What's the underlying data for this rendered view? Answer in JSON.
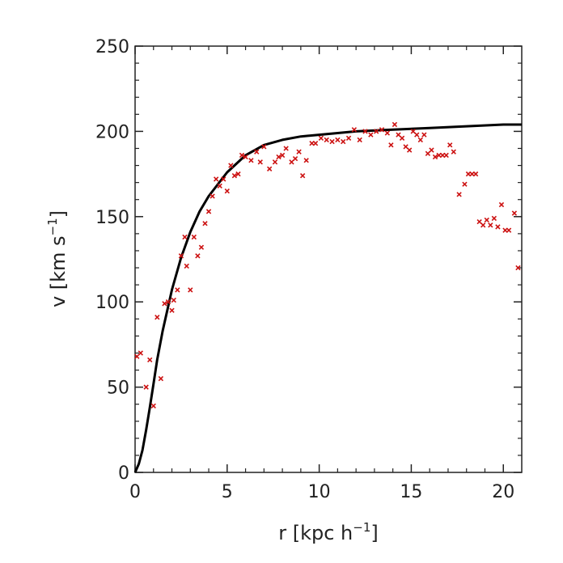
{
  "chart_data": {
    "type": "scatter",
    "xlabel": "r [kpc h",
    "xlabel_sup": "−1",
    "xlabel_tail": "]",
    "ylabel": "v [km s",
    "ylabel_sup": "−1",
    "ylabel_tail": "]",
    "xlim": [
      0,
      21
    ],
    "ylim": [
      0,
      250
    ],
    "xticks": [
      0,
      5,
      10,
      15,
      20
    ],
    "yticks": [
      0,
      50,
      100,
      150,
      200,
      250
    ],
    "xtick_labels": [
      "0",
      "5",
      "10",
      "15",
      "20"
    ],
    "ytick_labels": [
      "0",
      "50",
      "100",
      "150",
      "200",
      "250"
    ],
    "grid": false,
    "colors": {
      "model": "#000000",
      "data": "#cc1111",
      "frame": "#222222"
    },
    "series": [
      {
        "kind": "line",
        "x": [
          0,
          0.2,
          0.4,
          0.6,
          0.8,
          1.0,
          1.2,
          1.5,
          2.0,
          2.5,
          3.0,
          3.5,
          4.0,
          5.0,
          6.0,
          7.0,
          8.0,
          9.0,
          10.0,
          12.0,
          14.0,
          16.0,
          18.0,
          20.0,
          21.0
        ],
        "y": [
          0,
          5,
          13,
          25,
          38,
          52,
          66,
          83,
          107,
          126,
          141,
          153,
          162,
          176,
          186,
          192,
          195,
          197,
          198,
          200,
          201,
          202,
          203,
          204,
          204
        ]
      },
      {
        "kind": "scatter",
        "marker": "x",
        "x": [
          0.1,
          0.3,
          0.6,
          0.8,
          1.0,
          1.2,
          1.4,
          1.6,
          1.8,
          2.0,
          2.1,
          2.3,
          2.5,
          2.7,
          2.8,
          3.0,
          3.2,
          3.4,
          3.6,
          3.8,
          4.0,
          4.2,
          4.4,
          4.6,
          4.8,
          5.0,
          5.2,
          5.4,
          5.6,
          5.8,
          6.0,
          6.3,
          6.6,
          6.8,
          7.0,
          7.3,
          7.6,
          7.8,
          8.0,
          8.2,
          8.5,
          8.7,
          8.9,
          9.1,
          9.3,
          9.6,
          9.8,
          10.1,
          10.4,
          10.7,
          11.0,
          11.3,
          11.6,
          11.9,
          12.2,
          12.5,
          12.8,
          13.1,
          13.4,
          13.7,
          13.9,
          14.1,
          14.3,
          14.5,
          14.7,
          14.9,
          15.1,
          15.3,
          15.5,
          15.7,
          15.9,
          16.1,
          16.3,
          16.5,
          16.7,
          16.9,
          17.1,
          17.3,
          17.6,
          17.9,
          18.1,
          18.3,
          18.5,
          18.7,
          18.9,
          19.1,
          19.3,
          19.5,
          19.7,
          19.9,
          20.1,
          20.3,
          20.6,
          20.8
        ],
        "y": [
          68,
          70,
          50,
          66,
          39,
          91,
          55,
          99,
          100,
          95,
          101,
          107,
          127,
          138,
          121,
          107,
          138,
          127,
          132,
          146,
          153,
          162,
          172,
          168,
          172,
          165,
          180,
          174,
          175,
          186,
          185,
          183,
          188,
          182,
          191,
          178,
          182,
          185,
          186,
          190,
          182,
          184,
          188,
          174,
          183,
          193,
          193,
          196,
          195,
          194,
          195,
          194,
          196,
          201,
          195,
          200,
          198,
          200,
          201,
          199,
          192,
          204,
          198,
          196,
          191,
          189,
          200,
          198,
          195,
          198,
          187,
          189,
          185,
          186,
          186,
          186,
          192,
          188,
          163,
          169,
          175,
          175,
          175,
          147,
          145,
          148,
          145,
          149,
          144,
          157,
          142,
          142,
          152,
          120
        ]
      }
    ]
  }
}
